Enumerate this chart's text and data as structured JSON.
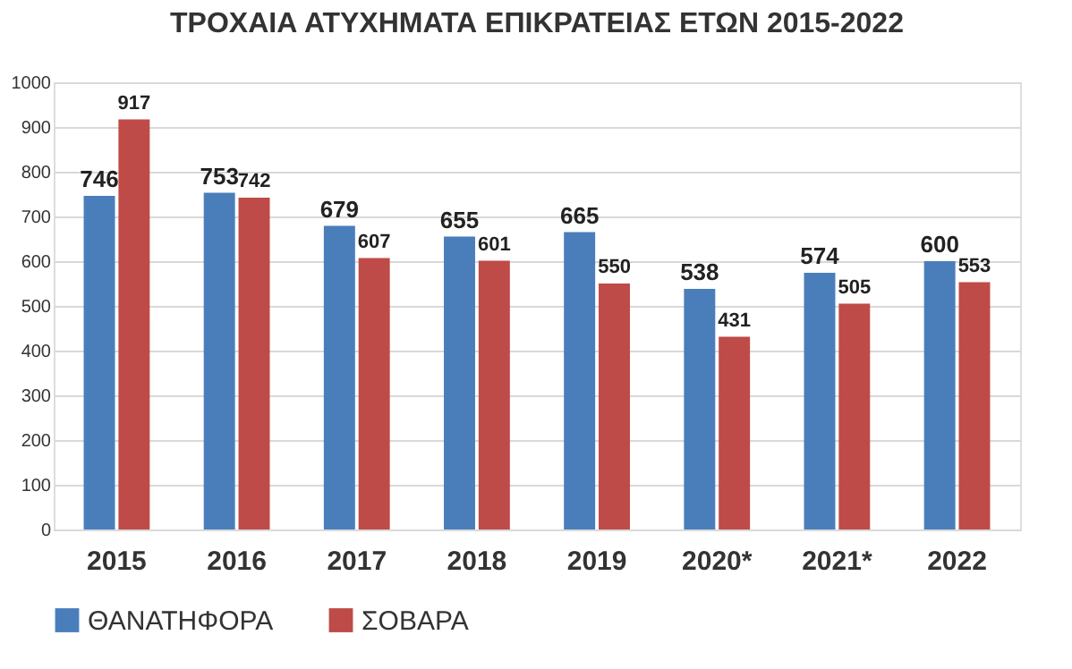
{
  "chart_data": {
    "type": "bar",
    "title": "ΤΡΟΧΑΙΑ ΑΤΥΧΗΜΑΤΑ ΕΠΙΚΡΑΤΕΙΑΣ ΕΤΩΝ 2015-2022",
    "categories": [
      "2015",
      "2016",
      "2017",
      "2018",
      "2019",
      "2020*",
      "2021*",
      "2022"
    ],
    "series": [
      {
        "name": "ΘΑΝΑΤΗΦΟΡΑ",
        "color": "#4a7ebb",
        "values": [
          746,
          753,
          679,
          655,
          665,
          538,
          574,
          600
        ]
      },
      {
        "name": "ΣΟΒΑΡΑ",
        "color": "#be4b48",
        "values": [
          917,
          742,
          607,
          601,
          550,
          431,
          505,
          553
        ]
      }
    ],
    "ylim": [
      0,
      1000
    ],
    "yticks": [
      0,
      100,
      200,
      300,
      400,
      500,
      600,
      700,
      800,
      900,
      1000
    ],
    "grid": "y",
    "legend": "bottom",
    "data_labels": true
  }
}
